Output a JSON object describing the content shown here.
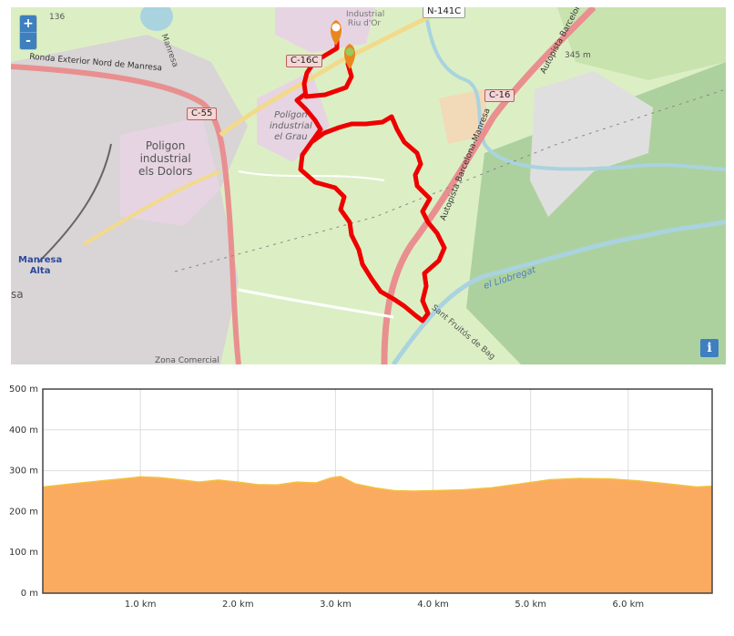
{
  "map": {
    "zoom_in": "+",
    "zoom_out": "-",
    "info": "i",
    "labels": {
      "poligon_dolors": [
        "Poligon",
        "industrial",
        "els Dolors"
      ],
      "poligon_grau": [
        "Polígon",
        "industrial",
        "el Grau"
      ],
      "riu_dor": "Industrial Riu d'Or",
      "manresa_alta": [
        "Manresa",
        "Alta"
      ],
      "manresa_street": "Manresa",
      "ronda": "Ronda Exterior Nord de Manresa",
      "autopista_1": "Autopista Barcelona-Manresa",
      "autopista_2": "Autopista Barcelona-Manresa",
      "llobregat": "el Llobregat",
      "sant_fruitos": "Sant Fruitós de Bag",
      "zona_comercial": "Zona Comercial",
      "altitude_345": "345 m",
      "sa": "sa",
      "num_136": "136"
    },
    "shields": {
      "c55": "C-55",
      "c16c": "C-16C",
      "c16": "C-16",
      "n141c": "N-141C"
    },
    "colors": {
      "track": "#ee0000",
      "marker": "#e8871e",
      "motorway": "#e98f8f",
      "water": "#a9d3df"
    }
  },
  "chart_data": {
    "type": "area",
    "title": "",
    "xlabel": "",
    "ylabel": "",
    "x_unit": "km",
    "y_unit": "m",
    "xlim": [
      0,
      6.86
    ],
    "ylim": [
      0,
      500
    ],
    "x_ticks": [
      "1.0 km",
      "2.0 km",
      "3.0 km",
      "4.0 km",
      "5.0 km",
      "6.0 km"
    ],
    "y_ticks": [
      "500 m",
      "400 m",
      "300 m",
      "200 m",
      "100 m",
      "0 m"
    ],
    "grid": true,
    "fill_color": "#fbab60",
    "line_color": "#f3c13a",
    "series": [
      {
        "x": [
          0.0,
          0.3,
          0.6,
          0.9,
          1.0,
          1.2,
          1.4,
          1.6,
          1.8,
          2.0,
          2.2,
          2.4,
          2.6,
          2.8,
          2.95,
          3.05,
          3.2,
          3.4,
          3.6,
          3.8,
          4.0,
          4.3,
          4.6,
          4.9,
          5.2,
          5.5,
          5.8,
          6.1,
          6.4,
          6.7,
          6.86
        ],
        "y": [
          260,
          268,
          275,
          282,
          285,
          283,
          278,
          272,
          277,
          272,
          266,
          265,
          272,
          270,
          282,
          286,
          268,
          258,
          251,
          250,
          251,
          253,
          258,
          268,
          278,
          281,
          280,
          275,
          268,
          260,
          262
        ]
      }
    ]
  }
}
